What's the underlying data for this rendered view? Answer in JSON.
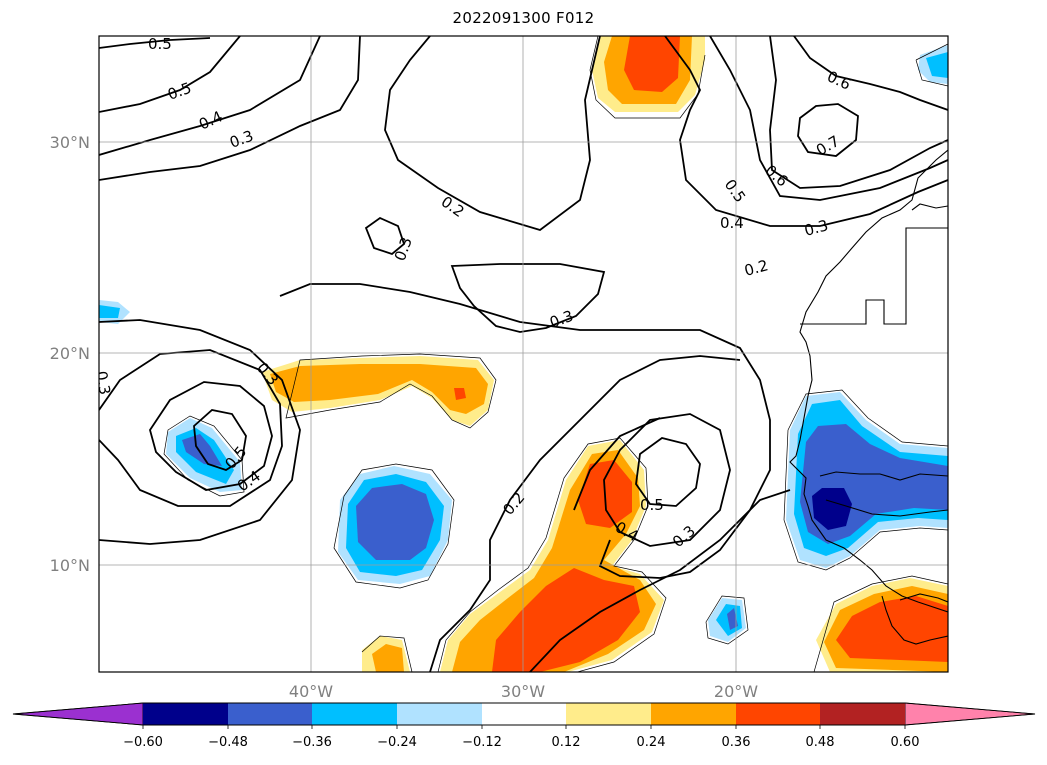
{
  "title": "2022091300 F012",
  "map": {
    "lat_ticks": [
      "30°N",
      "20°N",
      "10°N"
    ],
    "lon_ticks": [
      "40°W",
      "30°W",
      "20°W"
    ],
    "extent": {
      "lon": [
        -50,
        -10
      ],
      "lat": [
        5,
        35
      ]
    },
    "gridlines": true
  },
  "contour_labels": [
    {
      "id": "c1",
      "text": "0.5"
    },
    {
      "id": "c2",
      "text": "0.5"
    },
    {
      "id": "c3",
      "text": "0.4"
    },
    {
      "id": "c4",
      "text": "0.3"
    },
    {
      "id": "c5",
      "text": "0.2"
    },
    {
      "id": "c6",
      "text": "0.3"
    },
    {
      "id": "c7",
      "text": "0.3"
    },
    {
      "id": "c8",
      "text": "0.6"
    },
    {
      "id": "c9",
      "text": "0.7"
    },
    {
      "id": "c10",
      "text": "0.6"
    },
    {
      "id": "c11",
      "text": "0.5"
    },
    {
      "id": "c12",
      "text": "0.4"
    },
    {
      "id": "c13",
      "text": "0.3"
    },
    {
      "id": "c14",
      "text": "0.2"
    },
    {
      "id": "c15",
      "text": "0.3"
    },
    {
      "id": "c16",
      "text": "0.3"
    },
    {
      "id": "c17",
      "text": "0.5"
    },
    {
      "id": "c18",
      "text": "0.4"
    },
    {
      "id": "c19",
      "text": "0.2"
    },
    {
      "id": "c20",
      "text": "0.5"
    },
    {
      "id": "c21",
      "text": "0.4"
    },
    {
      "id": "c22",
      "text": "0.3"
    }
  ],
  "colorbar": {
    "ticks": [
      "−0.60",
      "−0.48",
      "−0.36",
      "−0.24",
      "−0.12",
      "0.12",
      "0.24",
      "0.36",
      "0.48",
      "0.60"
    ],
    "colors": [
      "#9b30d0",
      "#00008b",
      "#3a5fcd",
      "#00bfff",
      "#b0e2ff",
      "#ffffff",
      "#ffec8b",
      "#ffa500",
      "#ff4500",
      "#b22222",
      "#ff82ab"
    ]
  }
}
